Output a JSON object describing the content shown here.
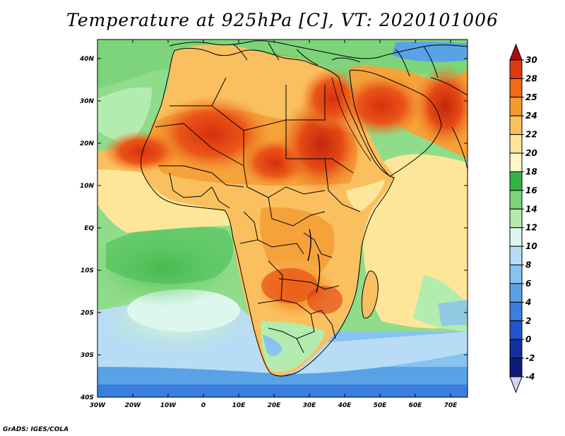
{
  "title": "Temperature at 925hPa [C], VT: 2020101006",
  "credit": "GrADS: IGES/COLA",
  "lat_labels": [
    "40N",
    "30N",
    "20N",
    "10N",
    "EQ",
    "10S",
    "20S",
    "30S",
    "40S"
  ],
  "lon_labels": [
    "30W",
    "20W",
    "10W",
    "0",
    "10E",
    "20E",
    "30E",
    "40E",
    "50E",
    "60E",
    "70E"
  ],
  "colorbar": {
    "levels": [
      "30",
      "28",
      "25",
      "24",
      "22",
      "20",
      "18",
      "16",
      "14",
      "12",
      "10",
      "8",
      "6",
      "4",
      "2",
      "0",
      "-2",
      "-4"
    ],
    "colors": [
      "#a50f15",
      "#e03a10",
      "#f06a1a",
      "#f59a30",
      "#fac060",
      "#fde69a",
      "#fdf7c8",
      "#35b445",
      "#7dd47a",
      "#b4ecb0",
      "#ddf7ee",
      "#b8dcf6",
      "#88c2f0",
      "#5aa2e6",
      "#3a7ee0",
      "#1f56cc",
      "#12309e",
      "#0c1c78",
      "#d7d3f7"
    ]
  }
}
